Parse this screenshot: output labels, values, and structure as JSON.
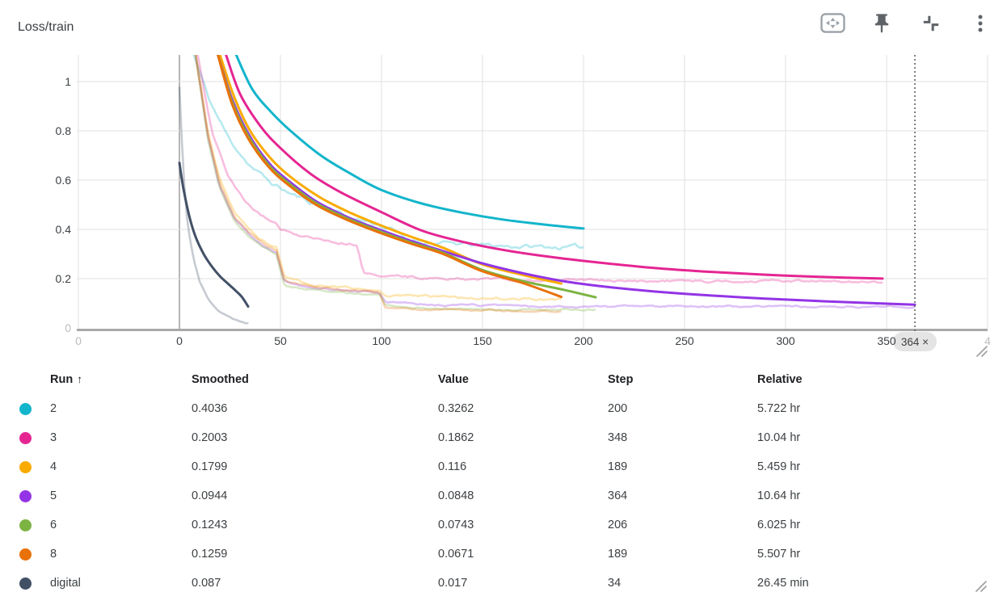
{
  "header": {
    "title": "Loss/train"
  },
  "toolbar": {
    "buttons": [
      {
        "icon": "fit-chart-to-data-icon"
      },
      {
        "icon": "pin-card-icon"
      },
      {
        "icon": "collapse-card-icon"
      },
      {
        "icon": "more-options-icon"
      }
    ],
    "resize_icons": [
      "chart-resize-handle-icon",
      "card-resize-handle-icon"
    ]
  },
  "chart_data": {
    "type": "line",
    "title": "Loss/train",
    "xlabel": "",
    "ylabel": "",
    "xlim": [
      -51,
      410
    ],
    "ylim": [
      0,
      1.11
    ],
    "grid": true,
    "legend_position": "table-below",
    "yticks": [
      {
        "value": 0,
        "label": "0",
        "faded": true
      },
      {
        "value": 0.2,
        "label": "0.2"
      },
      {
        "value": 0.4,
        "label": "0.4"
      },
      {
        "value": 0.6,
        "label": "0.6"
      },
      {
        "value": 0.8,
        "label": "0.8"
      },
      {
        "value": 1,
        "label": "1"
      }
    ],
    "xticks": [
      {
        "step": -50,
        "label": "0",
        "faded": true
      },
      {
        "step": 0,
        "label": "0"
      },
      {
        "step": 50,
        "label": "50"
      },
      {
        "step": 100,
        "label": "100"
      },
      {
        "step": 150,
        "label": "150"
      },
      {
        "step": 200,
        "label": "200"
      },
      {
        "step": 250,
        "label": "250"
      },
      {
        "step": 300,
        "label": "300"
      },
      {
        "step": 350,
        "label": "350"
      },
      {
        "step": 400,
        "label": "4",
        "faded": true
      }
    ],
    "step_marker": {
      "step": 364,
      "label": "364",
      "close_label": "×"
    },
    "series": [
      {
        "name": "2",
        "color": "#12b5cb",
        "step_end": 200,
        "smoothed_end": 0.4036,
        "value_end": 0.3262,
        "noise": 0.007,
        "smoothed_points": [
          [
            28,
            1.11
          ],
          [
            36,
            0.97
          ],
          [
            45,
            0.88
          ],
          [
            55,
            0.8
          ],
          [
            70,
            0.7
          ],
          [
            85,
            0.625
          ],
          [
            100,
            0.56
          ],
          [
            120,
            0.505
          ],
          [
            140,
            0.468
          ],
          [
            160,
            0.44
          ],
          [
            180,
            0.42
          ],
          [
            200,
            0.4036
          ]
        ],
        "raw_points": [
          [
            7,
            1.11
          ],
          [
            15,
            0.92
          ],
          [
            25,
            0.76
          ],
          [
            35,
            0.66
          ],
          [
            45,
            0.59
          ],
          [
            55,
            0.545
          ],
          [
            65,
            0.51
          ],
          [
            78,
            0.48
          ],
          [
            82,
            0.45
          ],
          [
            95,
            0.43
          ],
          [
            105,
            0.4
          ],
          [
            112,
            0.36
          ],
          [
            125,
            0.345
          ],
          [
            150,
            0.335
          ],
          [
            175,
            0.33
          ],
          [
            200,
            0.3262
          ]
        ]
      },
      {
        "name": "3",
        "color": "#e52592",
        "step_end": 348,
        "smoothed_end": 0.2003,
        "value_end": 0.1862,
        "noise": 0.004,
        "smoothed_points": [
          [
            23,
            1.11
          ],
          [
            30,
            0.95
          ],
          [
            40,
            0.82
          ],
          [
            50,
            0.73
          ],
          [
            65,
            0.625
          ],
          [
            80,
            0.55
          ],
          [
            100,
            0.47
          ],
          [
            120,
            0.395
          ],
          [
            140,
            0.35
          ],
          [
            160,
            0.317
          ],
          [
            180,
            0.292
          ],
          [
            200,
            0.272
          ],
          [
            230,
            0.247
          ],
          [
            260,
            0.229
          ],
          [
            290,
            0.216
          ],
          [
            320,
            0.2065
          ],
          [
            348,
            0.2003
          ]
        ],
        "raw_points": [
          [
            9,
            1.11
          ],
          [
            16,
            0.8
          ],
          [
            24,
            0.62
          ],
          [
            32,
            0.52
          ],
          [
            40,
            0.46
          ],
          [
            48,
            0.425
          ],
          [
            50,
            0.4
          ],
          [
            60,
            0.375
          ],
          [
            72,
            0.355
          ],
          [
            88,
            0.34
          ],
          [
            91,
            0.225
          ],
          [
            100,
            0.215
          ],
          [
            115,
            0.205
          ],
          [
            140,
            0.198
          ],
          [
            170,
            0.194
          ],
          [
            210,
            0.191
          ],
          [
            260,
            0.19
          ],
          [
            310,
            0.189
          ],
          [
            348,
            0.1862
          ]
        ]
      },
      {
        "name": "4",
        "color": "#f9ab00",
        "step_end": 189,
        "smoothed_end": 0.1799,
        "value_end": 0.116,
        "noise": 0.004,
        "smoothed_points": [
          [
            20,
            1.11
          ],
          [
            27,
            0.94
          ],
          [
            35,
            0.8
          ],
          [
            45,
            0.69
          ],
          [
            55,
            0.613
          ],
          [
            70,
            0.528
          ],
          [
            85,
            0.466
          ],
          [
            100,
            0.415
          ],
          [
            115,
            0.369
          ],
          [
            130,
            0.327
          ],
          [
            150,
            0.258
          ],
          [
            170,
            0.215
          ],
          [
            189,
            0.1799
          ]
        ],
        "raw_points": [
          [
            8,
            1.11
          ],
          [
            14,
            0.8
          ],
          [
            20,
            0.6
          ],
          [
            27,
            0.47
          ],
          [
            34,
            0.4
          ],
          [
            41,
            0.355
          ],
          [
            48,
            0.325
          ],
          [
            52,
            0.2
          ],
          [
            60,
            0.185
          ],
          [
            72,
            0.172
          ],
          [
            85,
            0.162
          ],
          [
            99,
            0.155
          ],
          [
            102,
            0.135
          ],
          [
            115,
            0.128
          ],
          [
            135,
            0.122
          ],
          [
            160,
            0.119
          ],
          [
            189,
            0.116
          ]
        ]
      },
      {
        "name": "5",
        "color": "#9334e6",
        "step_end": 364,
        "smoothed_end": 0.0944,
        "value_end": 0.0848,
        "noise": 0.003,
        "smoothed_points": [
          [
            19,
            1.11
          ],
          [
            26,
            0.93
          ],
          [
            34,
            0.79
          ],
          [
            44,
            0.672
          ],
          [
            54,
            0.597
          ],
          [
            68,
            0.512
          ],
          [
            84,
            0.447
          ],
          [
            100,
            0.396
          ],
          [
            115,
            0.352
          ],
          [
            130,
            0.313
          ],
          [
            150,
            0.262
          ],
          [
            170,
            0.222
          ],
          [
            190,
            0.19
          ],
          [
            210,
            0.168
          ],
          [
            235,
            0.148
          ],
          [
            260,
            0.133
          ],
          [
            290,
            0.119
          ],
          [
            320,
            0.108
          ],
          [
            345,
            0.1
          ],
          [
            364,
            0.0944
          ]
        ],
        "raw_points": [
          [
            8,
            1.11
          ],
          [
            14,
            0.78
          ],
          [
            20,
            0.575
          ],
          [
            27,
            0.45
          ],
          [
            34,
            0.385
          ],
          [
            41,
            0.34
          ],
          [
            48,
            0.31
          ],
          [
            52,
            0.185
          ],
          [
            60,
            0.17
          ],
          [
            72,
            0.158
          ],
          [
            85,
            0.148
          ],
          [
            99,
            0.142
          ],
          [
            102,
            0.104
          ],
          [
            115,
            0.097
          ],
          [
            135,
            0.092
          ],
          [
            160,
            0.089
          ],
          [
            200,
            0.0875
          ],
          [
            260,
            0.0865
          ],
          [
            320,
            0.0855
          ],
          [
            364,
            0.0848
          ]
        ]
      },
      {
        "name": "6",
        "color": "#7cb342",
        "step_end": 206,
        "smoothed_end": 0.1243,
        "value_end": 0.0743,
        "noise": 0.0025,
        "smoothed_points": [
          [
            19,
            1.11
          ],
          [
            26,
            0.92
          ],
          [
            34,
            0.78
          ],
          [
            44,
            0.663
          ],
          [
            54,
            0.588
          ],
          [
            68,
            0.505
          ],
          [
            84,
            0.441
          ],
          [
            100,
            0.39
          ],
          [
            115,
            0.346
          ],
          [
            130,
            0.307
          ],
          [
            150,
            0.235
          ],
          [
            170,
            0.19
          ],
          [
            190,
            0.155
          ],
          [
            206,
            0.1243
          ]
        ],
        "raw_points": [
          [
            8,
            1.11
          ],
          [
            14,
            0.77
          ],
          [
            20,
            0.565
          ],
          [
            27,
            0.44
          ],
          [
            34,
            0.375
          ],
          [
            41,
            0.33
          ],
          [
            48,
            0.3
          ],
          [
            52,
            0.175
          ],
          [
            60,
            0.16
          ],
          [
            72,
            0.148
          ],
          [
            85,
            0.139
          ],
          [
            99,
            0.133
          ],
          [
            102,
            0.088
          ],
          [
            115,
            0.082
          ],
          [
            135,
            0.078
          ],
          [
            165,
            0.076
          ],
          [
            206,
            0.0743
          ]
        ]
      },
      {
        "name": "8",
        "color": "#e8710a",
        "step_end": 189,
        "smoothed_end": 0.1259,
        "value_end": 0.0671,
        "noise": 0.0025,
        "smoothed_points": [
          [
            19,
            1.11
          ],
          [
            26,
            0.91
          ],
          [
            34,
            0.77
          ],
          [
            44,
            0.655
          ],
          [
            54,
            0.58
          ],
          [
            68,
            0.498
          ],
          [
            84,
            0.435
          ],
          [
            100,
            0.384
          ],
          [
            115,
            0.341
          ],
          [
            130,
            0.302
          ],
          [
            150,
            0.23
          ],
          [
            170,
            0.182
          ],
          [
            189,
            0.1259
          ]
        ],
        "raw_points": [
          [
            8,
            1.11
          ],
          [
            14,
            0.79
          ],
          [
            20,
            0.585
          ],
          [
            27,
            0.455
          ],
          [
            34,
            0.39
          ],
          [
            41,
            0.345
          ],
          [
            48,
            0.315
          ],
          [
            52,
            0.19
          ],
          [
            60,
            0.175
          ],
          [
            72,
            0.162
          ],
          [
            85,
            0.152
          ],
          [
            99,
            0.145
          ],
          [
            102,
            0.083
          ],
          [
            115,
            0.076
          ],
          [
            135,
            0.071
          ],
          [
            160,
            0.069
          ],
          [
            189,
            0.0671
          ]
        ]
      },
      {
        "name": "digital",
        "color": "#425066",
        "step_end": 34,
        "smoothed_end": 0.087,
        "value_end": 0.017,
        "noise": 0.002,
        "smoothed_points": [
          [
            0,
            0.67
          ],
          [
            2,
            0.565
          ],
          [
            5,
            0.45
          ],
          [
            8,
            0.37
          ],
          [
            12,
            0.3
          ],
          [
            16,
            0.25
          ],
          [
            20,
            0.21
          ],
          [
            24,
            0.18
          ],
          [
            28,
            0.15
          ],
          [
            31,
            0.125
          ],
          [
            34,
            0.087
          ]
        ],
        "raw_points": [
          [
            0,
            0.98
          ],
          [
            2,
            0.62
          ],
          [
            4,
            0.42
          ],
          [
            7,
            0.28
          ],
          [
            10,
            0.19
          ],
          [
            14,
            0.12
          ],
          [
            18,
            0.08
          ],
          [
            22,
            0.055
          ],
          [
            26,
            0.038
          ],
          [
            30,
            0.026
          ],
          [
            34,
            0.017
          ]
        ]
      }
    ]
  },
  "table": {
    "columns": [
      {
        "label": "Run",
        "sort_arrow": "↑"
      },
      {
        "label": "Smoothed"
      },
      {
        "label": "Value"
      },
      {
        "label": "Step"
      },
      {
        "label": "Relative"
      }
    ],
    "rows": [
      {
        "run": "2",
        "color": "#12b5cb",
        "smoothed": "0.4036",
        "value": "0.3262",
        "step": "200",
        "relative": "5.722 hr"
      },
      {
        "run": "3",
        "color": "#e52592",
        "smoothed": "0.2003",
        "value": "0.1862",
        "step": "348",
        "relative": "10.04 hr"
      },
      {
        "run": "4",
        "color": "#f9ab00",
        "smoothed": "0.1799",
        "value": "0.116",
        "step": "189",
        "relative": "5.459 hr"
      },
      {
        "run": "5",
        "color": "#9334e6",
        "smoothed": "0.0944",
        "value": "0.0848",
        "step": "364",
        "relative": "10.64 hr"
      },
      {
        "run": "6",
        "color": "#7cb342",
        "smoothed": "0.1243",
        "value": "0.0743",
        "step": "206",
        "relative": "6.025 hr"
      },
      {
        "run": "8",
        "color": "#e8710a",
        "smoothed": "0.1259",
        "value": "0.0671",
        "step": "189",
        "relative": "5.507 hr"
      },
      {
        "run": "digital",
        "color": "#425066",
        "smoothed": "0.087",
        "value": "0.017",
        "step": "34",
        "relative": "26.45 min"
      }
    ]
  }
}
